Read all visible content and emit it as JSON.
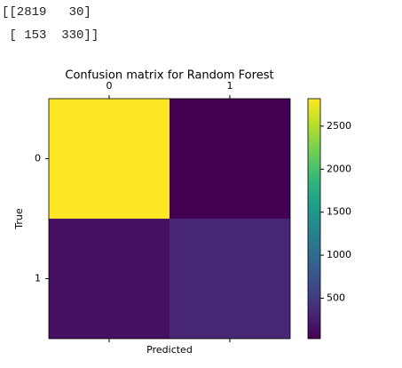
{
  "output_lines": [
    "[[2819   30]",
    " [ 153  330]]"
  ],
  "chart_data": {
    "type": "heatmap",
    "title": "Confusion matrix for Random Forest",
    "xlabel": "Predicted",
    "ylabel": "True",
    "x_categories": [
      "0",
      "1"
    ],
    "y_categories": [
      "0",
      "1"
    ],
    "values": [
      [
        2819,
        30
      ],
      [
        153,
        330
      ]
    ],
    "colormap": "viridis",
    "clim": [
      30,
      2819
    ],
    "colorbar_ticks": [
      500,
      1000,
      1500,
      2000,
      2500
    ]
  }
}
